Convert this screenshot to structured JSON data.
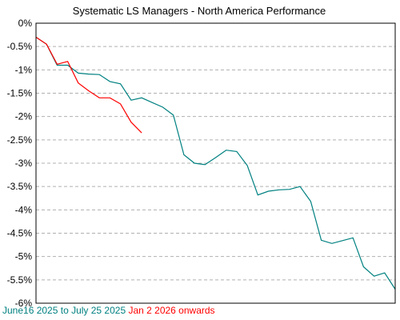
{
  "chart_data": {
    "type": "line",
    "title": "Systematic LS Managers - North America Performance",
    "xlabel": "",
    "ylabel": "",
    "ylim": [
      -6,
      0
    ],
    "y_ticks": [
      "0%",
      "-0.5%",
      "-1%",
      "-1.5%",
      "-2%",
      "-2.5%",
      "-3%",
      "-3.5%",
      "-4%",
      "-4.5%",
      "-5%",
      "-5.5%",
      "-6%"
    ],
    "grid": true,
    "x_count": 35,
    "series": [
      {
        "name": "June16 2025 to July 25 2025",
        "color": "#008080",
        "values": [
          -0.3,
          -0.45,
          -0.9,
          -0.9,
          -1.07,
          -1.09,
          -1.1,
          -1.25,
          -1.3,
          -1.65,
          -1.6,
          -1.7,
          -1.8,
          -1.97,
          -2.82,
          -3.0,
          -3.03,
          -2.88,
          -2.72,
          -2.75,
          -3.05,
          -3.68,
          -3.6,
          -3.57,
          -3.56,
          -3.5,
          -3.82,
          -4.65,
          -4.72,
          -4.66,
          -4.6,
          -5.22,
          -5.42,
          -5.35,
          -5.7
        ]
      },
      {
        "name": "Jan 2 2026 onwards",
        "color": "#ff0000",
        "values": [
          -0.3,
          -0.45,
          -0.88,
          -0.82,
          -1.28,
          -1.45,
          -1.6,
          -1.6,
          -1.73,
          -2.12,
          -2.35
        ]
      }
    ],
    "legend_placement": "bottom-left"
  }
}
